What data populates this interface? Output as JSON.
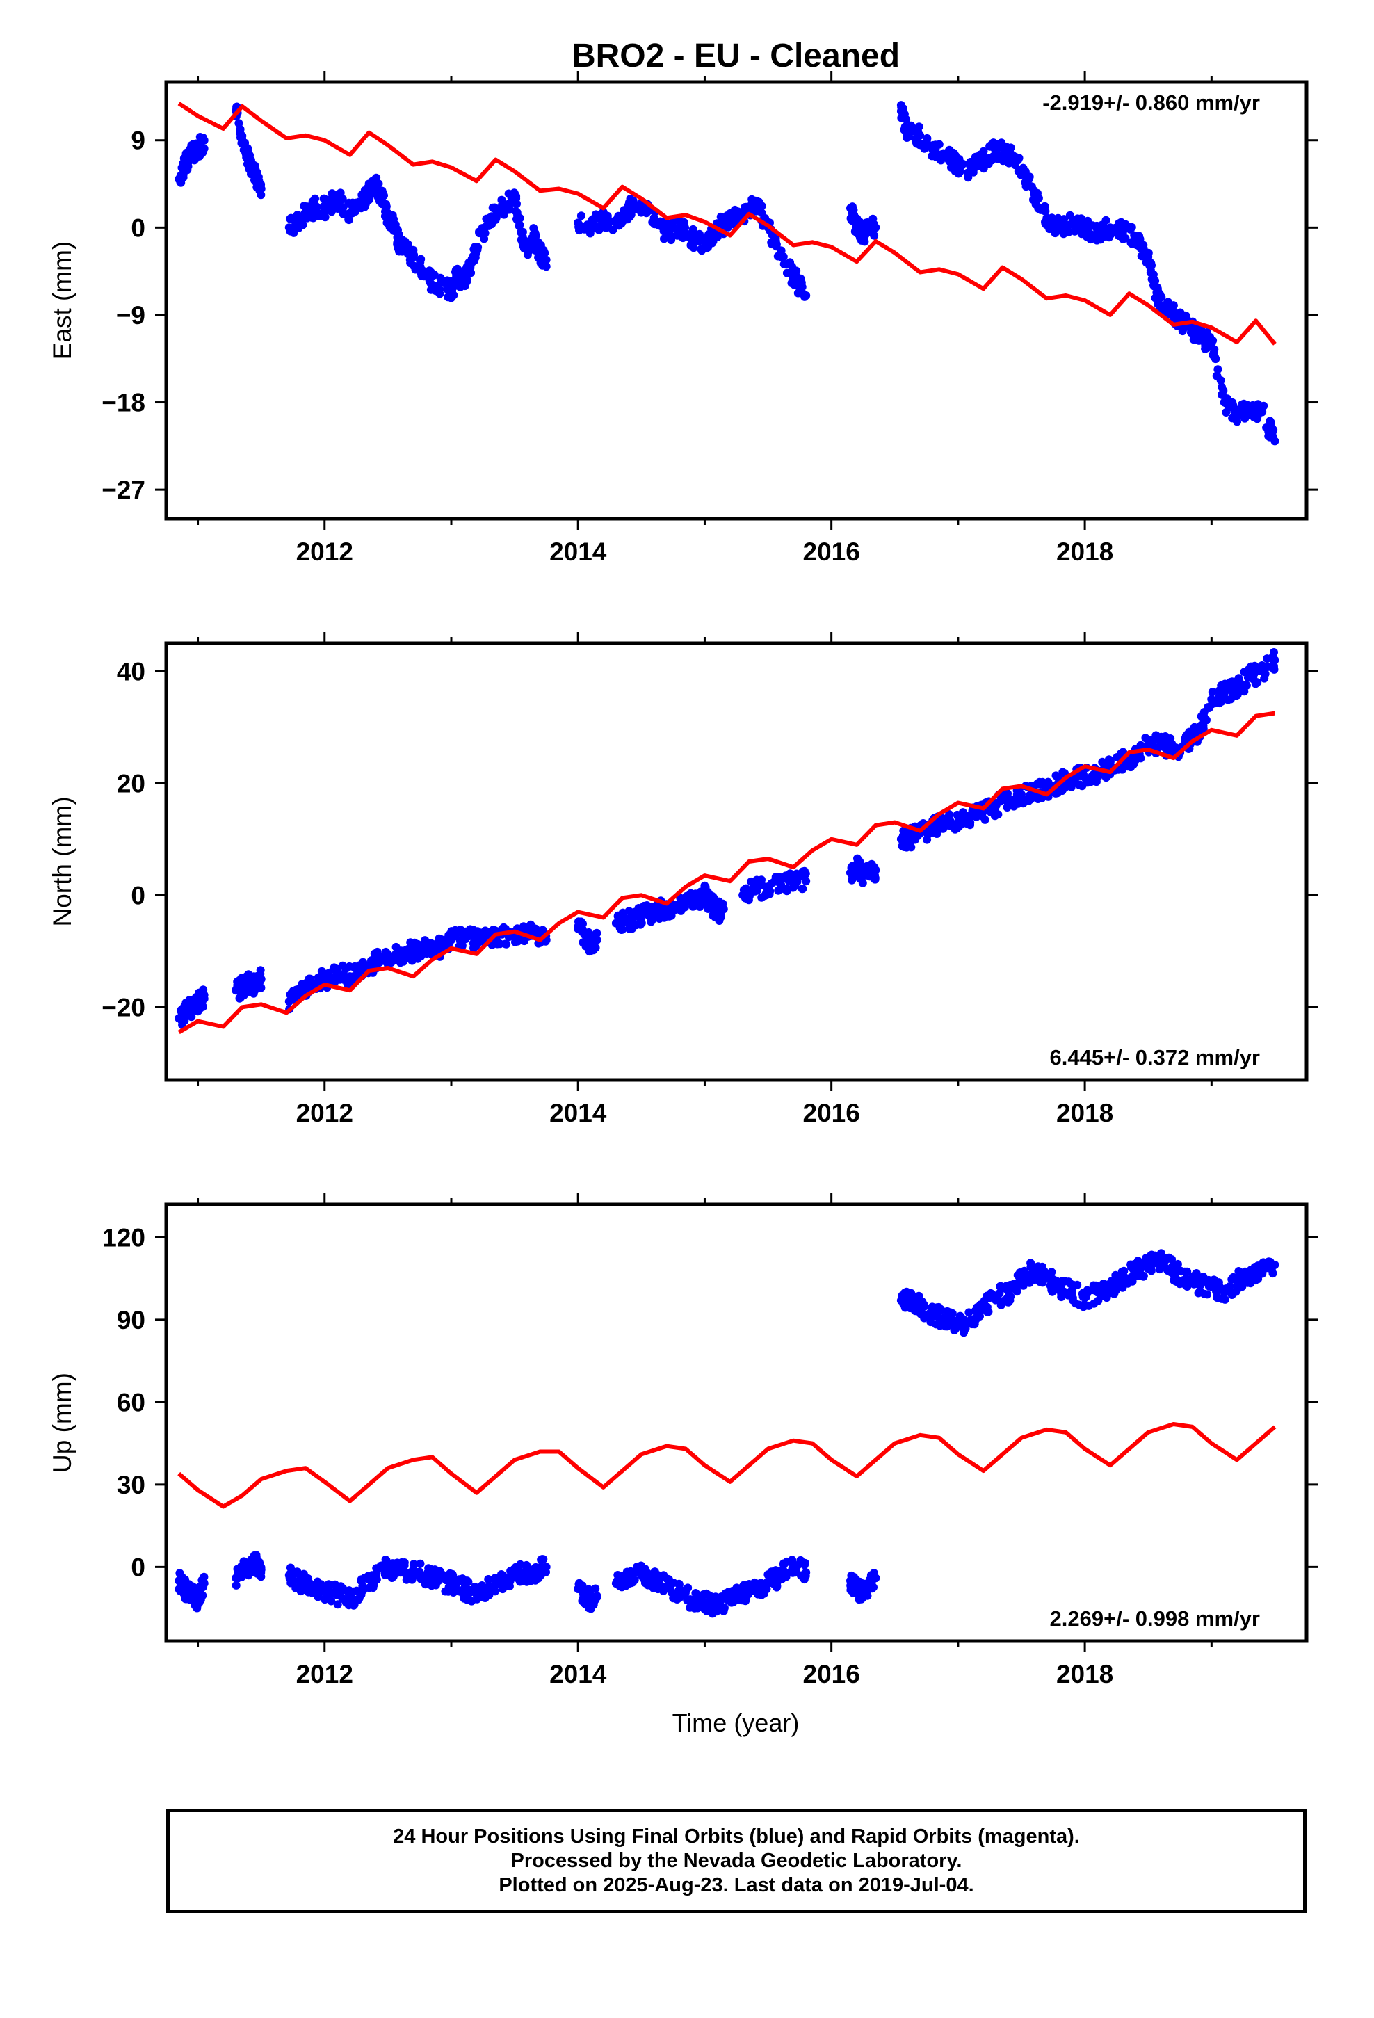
{
  "title": "BRO2  - EU - Cleaned",
  "x_axis_label": "Time (year)",
  "footer": {
    "line1": "24 Hour Positions Using Final Orbits (blue) and Rapid Orbits (magenta).",
    "line2": "Processed by the Nevada Geodetic Laboratory.",
    "line3": "Plotted on 2025-Aug-23. Last data on 2019-Jul-04."
  },
  "colors": {
    "data_points": "#0000ff",
    "model_line": "#ff0000",
    "frame": "#000000"
  },
  "chart_data": [
    {
      "type": "scatter",
      "name": "east",
      "ylabel": "East (mm)",
      "rate_label": "-2.919+/- 0.860 mm/yr",
      "rate_label_position": "top-right",
      "xlim": [
        2010.75,
        2019.75
      ],
      "ylim": [
        -30,
        15
      ],
      "x_ticks": [
        2012,
        2014,
        2016,
        2018
      ],
      "x_tick_labels": [
        "2012",
        "2014",
        "2016",
        "2018"
      ],
      "y_ticks": [
        9,
        0,
        -9,
        -18,
        -27
      ],
      "y_tick_labels": [
        "9",
        "0",
        "−9",
        "−18",
        "−27"
      ],
      "grid": false,
      "data_series": {
        "name": "positions",
        "x": [
          2010.85,
          2010.9,
          2010.95,
          2011.0,
          2011.05,
          2011.3,
          2011.35,
          2011.4,
          2011.45,
          2011.5,
          2011.72,
          2011.8,
          2011.9,
          2012.0,
          2012.1,
          2012.2,
          2012.3,
          2012.35,
          2012.4,
          2012.45,
          2012.5,
          2012.55,
          2012.6,
          2012.7,
          2012.8,
          2012.9,
          2013.0,
          2013.05,
          2013.1,
          2013.15,
          2013.2,
          2013.3,
          2013.4,
          2013.5,
          2013.55,
          2013.6,
          2013.65,
          2013.7,
          2013.75,
          2014.0,
          2014.1,
          2014.2,
          2014.3,
          2014.4,
          2014.5,
          2014.6,
          2014.7,
          2014.8,
          2014.9,
          2015.0,
          2015.1,
          2015.2,
          2015.3,
          2015.4,
          2015.5,
          2015.6,
          2015.7,
          2015.8,
          2016.15,
          2016.2,
          2016.25,
          2016.35,
          2016.55,
          2016.6,
          2016.7,
          2016.8,
          2016.9,
          2017.0,
          2017.1,
          2017.2,
          2017.3,
          2017.4,
          2017.5,
          2017.6,
          2017.7,
          2017.8,
          2017.9,
          2018.0,
          2018.1,
          2018.2,
          2018.3,
          2018.4,
          2018.5,
          2018.55,
          2018.6,
          2018.7,
          2018.8,
          2018.9,
          2019.0,
          2019.1,
          2019.2,
          2019.3,
          2019.4,
          2019.5
        ],
        "y": [
          5.0,
          6.5,
          7.5,
          8.0,
          9.0,
          12.0,
          9.0,
          7.0,
          5.5,
          4.0,
          0.0,
          1.0,
          2.0,
          2.0,
          3.0,
          1.5,
          2.5,
          3.5,
          4.5,
          3.0,
          1.0,
          0.0,
          -2.0,
          -3.0,
          -5.0,
          -6.0,
          -6.5,
          -5.0,
          -5.5,
          -4.0,
          -2.0,
          1.0,
          2.0,
          3.0,
          -0.5,
          -2.0,
          -1.0,
          -2.5,
          -4.0,
          0.5,
          0.0,
          1.0,
          0.5,
          2.0,
          2.5,
          1.0,
          -0.5,
          0.0,
          -1.0,
          -1.5,
          0.0,
          0.5,
          1.5,
          2.5,
          0.0,
          -3.0,
          -5.0,
          -7.0,
          2.0,
          0.0,
          -0.5,
          0.0,
          12.0,
          10.0,
          9.5,
          8.0,
          7.5,
          6.5,
          6.0,
          7.0,
          8.0,
          7.5,
          6.0,
          3.5,
          1.0,
          0.0,
          0.5,
          0.0,
          -0.5,
          0.0,
          -0.5,
          -1.0,
          -3.0,
          -6.0,
          -8.0,
          -9.0,
          -10.0,
          -11.0,
          -12.0,
          -18.0,
          -19.0,
          -18.5,
          -19.0,
          -22.0
        ]
      },
      "model_series": {
        "name": "model",
        "x": [
          2010.85,
          2011.0,
          2011.2,
          2011.35,
          2011.5,
          2011.7,
          2011.85,
          2012.0,
          2012.2,
          2012.35,
          2012.5,
          2012.7,
          2012.85,
          2013.0,
          2013.2,
          2013.35,
          2013.5,
          2013.7,
          2013.85,
          2014.0,
          2014.2,
          2014.35,
          2014.5,
          2014.7,
          2014.85,
          2015.0,
          2015.2,
          2015.35,
          2015.5,
          2015.7,
          2015.85,
          2016.0,
          2016.2,
          2016.35,
          2016.5,
          2016.7,
          2016.85,
          2017.0,
          2017.2,
          2017.35,
          2017.5,
          2017.7,
          2017.85,
          2018.0,
          2018.2,
          2018.35,
          2018.5,
          2018.7,
          2018.85,
          2019.0,
          2019.2,
          2019.35,
          2019.5
        ],
        "y": [
          12.8,
          11.5,
          10.2,
          12.5,
          11.0,
          9.2,
          9.5,
          9.0,
          7.5,
          9.8,
          8.5,
          6.5,
          6.8,
          6.2,
          4.8,
          7.0,
          5.8,
          3.8,
          4.0,
          3.5,
          2.0,
          4.2,
          3.0,
          1.0,
          1.3,
          0.6,
          -0.8,
          1.4,
          0.2,
          -1.8,
          -1.5,
          -2.0,
          -3.5,
          -1.4,
          -2.6,
          -4.6,
          -4.3,
          -4.8,
          -6.3,
          -4.1,
          -5.3,
          -7.3,
          -7.0,
          -7.5,
          -9.0,
          -6.8,
          -8.0,
          -10.0,
          -9.7,
          -10.3,
          -11.8,
          -9.6,
          -12.0
        ]
      }
    },
    {
      "type": "scatter",
      "name": "north",
      "ylabel": "North (mm)",
      "rate_label": "6.445+/- 0.372 mm/yr",
      "rate_label_position": "bottom-right",
      "xlim": [
        2010.75,
        2019.75
      ],
      "ylim": [
        -33,
        45
      ],
      "x_ticks": [
        2012,
        2014,
        2016,
        2018
      ],
      "x_tick_labels": [
        "2012",
        "2014",
        "2016",
        "2018"
      ],
      "y_ticks": [
        40,
        20,
        0,
        -20
      ],
      "y_tick_labels": [
        "40",
        "20",
        "0",
        "−20"
      ],
      "grid": false,
      "data_series": {
        "name": "positions",
        "x": [
          2010.85,
          2010.9,
          2010.95,
          2011.0,
          2011.05,
          2011.3,
          2011.35,
          2011.4,
          2011.45,
          2011.5,
          2011.72,
          2011.8,
          2011.9,
          2012.0,
          2012.1,
          2012.2,
          2012.3,
          2012.4,
          2012.5,
          2012.6,
          2012.7,
          2012.8,
          2012.9,
          2013.0,
          2013.1,
          2013.2,
          2013.3,
          2013.4,
          2013.5,
          2013.6,
          2013.7,
          2013.75,
          2014.0,
          2014.05,
          2014.1,
          2014.15,
          2014.3,
          2014.4,
          2014.5,
          2014.6,
          2014.7,
          2014.8,
          2014.9,
          2015.0,
          2015.05,
          2015.1,
          2015.15,
          2015.3,
          2015.4,
          2015.5,
          2015.6,
          2015.7,
          2015.8,
          2016.15,
          2016.2,
          2016.25,
          2016.35,
          2016.55,
          2016.6,
          2016.7,
          2016.8,
          2016.9,
          2017.0,
          2017.1,
          2017.2,
          2017.3,
          2017.4,
          2017.5,
          2017.6,
          2017.7,
          2017.8,
          2017.9,
          2018.0,
          2018.1,
          2018.2,
          2018.3,
          2018.4,
          2018.5,
          2018.6,
          2018.7,
          2018.8,
          2018.9,
          2019.0,
          2019.1,
          2019.2,
          2019.3,
          2019.4,
          2019.5
        ],
        "y": [
          -22.0,
          -21.0,
          -20.0,
          -19.0,
          -18.5,
          -17.0,
          -16.5,
          -15.5,
          -16.0,
          -15.0,
          -19.0,
          -17.0,
          -16.0,
          -15.0,
          -14.0,
          -14.5,
          -13.0,
          -12.0,
          -11.0,
          -10.5,
          -10.0,
          -9.0,
          -9.5,
          -8.0,
          -7.5,
          -8.0,
          -8.0,
          -7.0,
          -7.0,
          -6.5,
          -7.5,
          -8.0,
          -6.0,
          -7.0,
          -9.0,
          -8.0,
          -5.0,
          -4.5,
          -3.5,
          -3.0,
          -2.5,
          -2.0,
          -1.0,
          0.0,
          -1.5,
          -3.0,
          -2.5,
          0.0,
          1.0,
          1.5,
          2.0,
          3.0,
          2.5,
          4.0,
          5.0,
          3.5,
          4.5,
          10.0,
          10.0,
          11.0,
          12.0,
          13.0,
          13.0,
          14.0,
          15.0,
          16.0,
          17.0,
          18.0,
          18.5,
          19.0,
          20.0,
          21.0,
          21.0,
          22.0,
          23.0,
          24.0,
          25.0,
          27.0,
          27.0,
          26.0,
          27.0,
          29.0,
          35.0,
          36.0,
          37.0,
          39.0,
          40.0,
          42.0
        ]
      },
      "model_series": {
        "name": "model",
        "x": [
          2010.85,
          2011.0,
          2011.2,
          2011.35,
          2011.5,
          2011.7,
          2011.85,
          2012.0,
          2012.2,
          2012.35,
          2012.5,
          2012.7,
          2012.85,
          2013.0,
          2013.2,
          2013.35,
          2013.5,
          2013.7,
          2013.85,
          2014.0,
          2014.2,
          2014.35,
          2014.5,
          2014.7,
          2014.85,
          2015.0,
          2015.2,
          2015.35,
          2015.5,
          2015.7,
          2015.85,
          2016.0,
          2016.2,
          2016.35,
          2016.5,
          2016.7,
          2016.85,
          2017.0,
          2017.2,
          2017.35,
          2017.5,
          2017.7,
          2017.85,
          2018.0,
          2018.2,
          2018.35,
          2018.5,
          2018.7,
          2018.85,
          2019.0,
          2019.2,
          2019.35,
          2019.5
        ],
        "y": [
          -24.5,
          -22.5,
          -23.5,
          -20.0,
          -19.5,
          -21.0,
          -18.0,
          -16.0,
          -17.0,
          -13.5,
          -13.0,
          -14.5,
          -11.5,
          -9.5,
          -10.5,
          -7.0,
          -6.5,
          -8.0,
          -5.0,
          -3.0,
          -4.0,
          -0.5,
          0.0,
          -1.5,
          1.5,
          3.5,
          2.5,
          6.0,
          6.5,
          5.0,
          8.0,
          10.0,
          9.0,
          12.5,
          13.0,
          11.5,
          14.5,
          16.5,
          15.5,
          19.0,
          19.5,
          18.0,
          21.0,
          23.0,
          22.0,
          25.5,
          26.0,
          24.5,
          27.5,
          29.5,
          28.5,
          32.0,
          32.5
        ]
      }
    },
    {
      "type": "scatter",
      "name": "up",
      "ylabel": "Up (mm)",
      "rate_label": "2.269+/- 0.998 mm/yr",
      "rate_label_position": "bottom-right",
      "xlim": [
        2010.75,
        2019.75
      ],
      "ylim": [
        -27,
        132
      ],
      "x_ticks": [
        2012,
        2014,
        2016,
        2018
      ],
      "x_tick_labels": [
        "2012",
        "2014",
        "2016",
        "2018"
      ],
      "y_ticks": [
        120,
        90,
        60,
        30,
        0
      ],
      "y_tick_labels": [
        "120",
        "90",
        "60",
        "30",
        "0"
      ],
      "grid": false,
      "data_series": {
        "name": "positions",
        "x": [
          2010.85,
          2010.9,
          2010.95,
          2011.0,
          2011.05,
          2011.3,
          2011.35,
          2011.4,
          2011.45,
          2011.5,
          2011.72,
          2011.8,
          2011.9,
          2012.0,
          2012.1,
          2012.2,
          2012.3,
          2012.4,
          2012.5,
          2012.6,
          2012.7,
          2012.8,
          2012.9,
          2013.0,
          2013.1,
          2013.2,
          2013.3,
          2013.4,
          2013.5,
          2013.6,
          2013.7,
          2013.75,
          2014.0,
          2014.05,
          2014.1,
          2014.15,
          2014.3,
          2014.4,
          2014.5,
          2014.6,
          2014.7,
          2014.8,
          2014.9,
          2015.0,
          2015.1,
          2015.2,
          2015.3,
          2015.4,
          2015.5,
          2015.6,
          2015.7,
          2015.8,
          2016.15,
          2016.2,
          2016.25,
          2016.35,
          2016.55,
          2016.6,
          2016.7,
          2016.8,
          2016.9,
          2017.0,
          2017.1,
          2017.2,
          2017.3,
          2017.4,
          2017.5,
          2017.6,
          2017.7,
          2017.8,
          2017.9,
          2018.0,
          2018.1,
          2018.2,
          2018.3,
          2018.4,
          2018.5,
          2018.6,
          2018.7,
          2018.8,
          2018.9,
          2019.0,
          2019.1,
          2019.2,
          2019.3,
          2019.4,
          2019.5
        ],
        "y": [
          -5.0,
          -8.0,
          -10.0,
          -12.0,
          -6.0,
          -4.0,
          0.0,
          -3.0,
          2.0,
          -1.0,
          -3.0,
          -5.0,
          -8.0,
          -9.0,
          -10.0,
          -12.0,
          -7.0,
          -4.0,
          0.0,
          -2.0,
          -1.0,
          -3.0,
          -5.0,
          -6.0,
          -8.0,
          -10.0,
          -7.0,
          -5.0,
          -3.0,
          -2.0,
          -1.0,
          0.0,
          -8.0,
          -10.0,
          -12.0,
          -11.0,
          -6.0,
          -4.0,
          -3.0,
          -5.0,
          -7.0,
          -9.0,
          -12.0,
          -13.0,
          -14.0,
          -11.0,
          -10.0,
          -8.0,
          -6.0,
          -3.0,
          0.0,
          -2.0,
          -5.0,
          -8.0,
          -10.0,
          -4.0,
          97.0,
          98.0,
          95.0,
          92.0,
          90.0,
          88.0,
          90.0,
          95.0,
          98.0,
          100.0,
          105.0,
          108.0,
          105.0,
          102.0,
          100.0,
          98.0,
          100.0,
          102.0,
          105.0,
          108.0,
          110.0,
          112.0,
          108.0,
          105.0,
          103.0,
          102.0,
          100.0,
          104.0,
          106.0,
          108.0,
          110.0
        ]
      },
      "model_series": {
        "name": "model",
        "x": [
          2010.85,
          2011.0,
          2011.2,
          2011.35,
          2011.5,
          2011.7,
          2011.85,
          2012.0,
          2012.2,
          2012.35,
          2012.5,
          2012.7,
          2012.85,
          2013.0,
          2013.2,
          2013.35,
          2013.5,
          2013.7,
          2013.85,
          2014.0,
          2014.2,
          2014.35,
          2014.5,
          2014.7,
          2014.85,
          2015.0,
          2015.2,
          2015.35,
          2015.5,
          2015.7,
          2015.85,
          2016.0,
          2016.2,
          2016.35,
          2016.5,
          2016.7,
          2016.85,
          2017.0,
          2017.2,
          2017.35,
          2017.5,
          2017.7,
          2017.85,
          2018.0,
          2018.2,
          2018.35,
          2018.5,
          2018.7,
          2018.85,
          2019.0,
          2019.2,
          2019.35,
          2019.5
        ],
        "y": [
          34.0,
          28.0,
          22.0,
          26.0,
          32.0,
          35.0,
          36.0,
          31.0,
          24.0,
          30.0,
          36.0,
          39.0,
          40.0,
          34.0,
          27.0,
          33.0,
          39.0,
          42.0,
          42.0,
          36.0,
          29.0,
          35.0,
          41.0,
          44.0,
          43.0,
          37.0,
          31.0,
          37.0,
          43.0,
          46.0,
          45.0,
          39.0,
          33.0,
          39.0,
          45.0,
          48.0,
          47.0,
          41.0,
          35.0,
          41.0,
          47.0,
          50.0,
          49.0,
          43.0,
          37.0,
          43.0,
          49.0,
          52.0,
          51.0,
          45.0,
          39.0,
          45.0,
          51.0
        ]
      }
    }
  ]
}
